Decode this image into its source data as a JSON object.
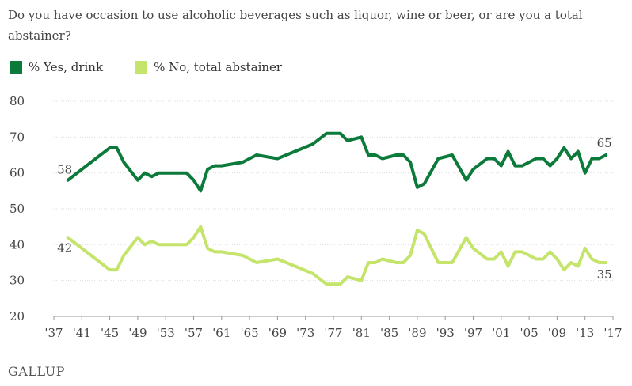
{
  "title": "Do you have occasion to use alcoholic beverages such as liquor, wine or beer, or are you a total abstainer?",
  "legend": [
    {
      "label": "% Yes, drink",
      "color": "#0b7a3a"
    },
    {
      "label": "% No, total abstainer",
      "color": "#c5e46b"
    }
  ],
  "source_logo": "GALLUP",
  "chart_data": {
    "type": "line",
    "title": "Do you have occasion to use alcoholic beverages such as liquor, wine or beer, or are you a total abstainer?",
    "xlabel": "",
    "ylabel": "",
    "ylim": [
      20,
      80
    ],
    "yticks": [
      20,
      30,
      40,
      50,
      60,
      70,
      80
    ],
    "xlim": [
      1937,
      2017
    ],
    "xticks": [
      1937,
      1941,
      1945,
      1949,
      1953,
      1957,
      1961,
      1965,
      1969,
      1973,
      1977,
      1981,
      1985,
      1989,
      1993,
      1997,
      2001,
      2005,
      2009,
      2013,
      2017
    ],
    "xtick_labels": [
      "'37",
      "'41",
      "'45",
      "'49",
      "'53",
      "'57",
      "'61",
      "'65",
      "'69",
      "'73",
      "'77",
      "'81",
      "'85",
      "'89",
      "'93",
      "'97",
      "'01",
      "'05",
      "'09",
      "'13",
      "'17"
    ],
    "grid": "horizontal",
    "legend_position": "top-left",
    "series": [
      {
        "name": "% Yes, drink",
        "color": "#0b7a3a",
        "x": [
          1939,
          1945,
          1946,
          1947,
          1949,
          1950,
          1951,
          1952,
          1953,
          1954,
          1955,
          1956,
          1957,
          1958,
          1959,
          1960,
          1961,
          1964,
          1966,
          1969,
          1974,
          1976,
          1977,
          1978,
          1979,
          1981,
          1982,
          1983,
          1984,
          1986,
          1987,
          1988,
          1989,
          1990,
          1992,
          1994,
          1996,
          1997,
          1999,
          2000,
          2001,
          2002,
          2003,
          2004,
          2005,
          2006,
          2007,
          2008,
          2009,
          2010,
          2011,
          2012,
          2013,
          2014,
          2015,
          2016
        ],
        "values": [
          58,
          67,
          67,
          63,
          58,
          60,
          59,
          60,
          60,
          60,
          60,
          60,
          58,
          55,
          61,
          62,
          62,
          63,
          65,
          64,
          68,
          71,
          71,
          71,
          69,
          70,
          65,
          65,
          64,
          65,
          65,
          63,
          56,
          57,
          64,
          65,
          58,
          61,
          64,
          64,
          62,
          66,
          62,
          62,
          63,
          64,
          64,
          62,
          64,
          67,
          64,
          66,
          60,
          64,
          64,
          65
        ]
      },
      {
        "name": "% No, total abstainer",
        "color": "#c5e46b",
        "x": [
          1939,
          1945,
          1946,
          1947,
          1949,
          1950,
          1951,
          1952,
          1953,
          1954,
          1955,
          1956,
          1957,
          1958,
          1959,
          1960,
          1961,
          1964,
          1966,
          1969,
          1974,
          1976,
          1977,
          1978,
          1979,
          1981,
          1982,
          1983,
          1984,
          1986,
          1987,
          1988,
          1989,
          1990,
          1992,
          1994,
          1996,
          1997,
          1999,
          2000,
          2001,
          2002,
          2003,
          2004,
          2005,
          2006,
          2007,
          2008,
          2009,
          2010,
          2011,
          2012,
          2013,
          2014,
          2015,
          2016
        ],
        "values": [
          42,
          33,
          33,
          37,
          42,
          40,
          41,
          40,
          40,
          40,
          40,
          40,
          42,
          45,
          39,
          38,
          38,
          37,
          35,
          36,
          32,
          29,
          29,
          29,
          31,
          30,
          35,
          35,
          36,
          35,
          35,
          37,
          44,
          43,
          35,
          35,
          42,
          39,
          36,
          36,
          38,
          34,
          38,
          38,
          37,
          36,
          36,
          38,
          36,
          33,
          35,
          34,
          39,
          36,
          35,
          35
        ]
      }
    ],
    "annotations": [
      {
        "series": 0,
        "x": 1939,
        "text": "58",
        "where": "start"
      },
      {
        "series": 1,
        "x": 1939,
        "text": "42",
        "where": "start"
      },
      {
        "series": 0,
        "x": 2016,
        "text": "65",
        "where": "end"
      },
      {
        "series": 1,
        "x": 2016,
        "text": "35",
        "where": "end"
      }
    ]
  }
}
